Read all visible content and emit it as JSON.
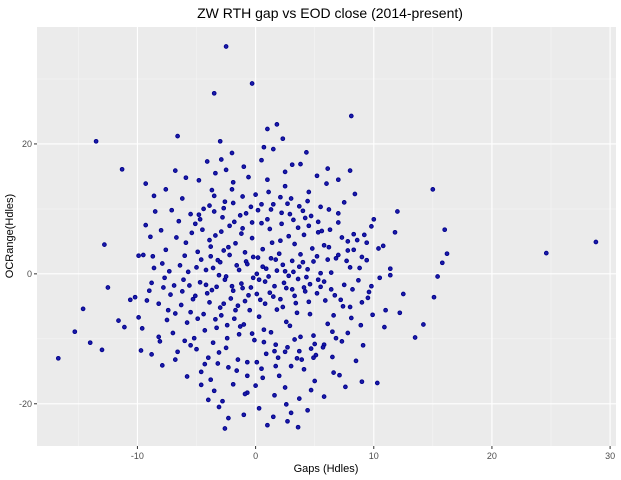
{
  "chart_data": {
    "type": "scatter",
    "title": "ZW RTH gap vs EOD close (2014-present)",
    "xlabel": "Gaps (Hdles)",
    "ylabel": "OCRange(Hdles)",
    "xlim": [
      -18.5,
      30.5
    ],
    "ylim": [
      -26.5,
      38
    ],
    "x_ticks": [
      -10,
      0,
      10,
      20,
      30
    ],
    "y_ticks": [
      -20,
      0,
      20
    ],
    "grid": true,
    "legend": "none",
    "colors": {
      "panel": "#ebebeb",
      "grid_major": "#ffffff",
      "grid_minor": "#f5f5f5",
      "point_fill": "#1a1aa8",
      "point_stroke": "#00008b"
    },
    "points": [
      [
        -16.7,
        -13.0
      ],
      [
        -14.6,
        -5.4
      ],
      [
        -14.0,
        -10.6
      ],
      [
        -13.5,
        20.4
      ],
      [
        -12.8,
        4.5
      ],
      [
        -11.3,
        16.1
      ],
      [
        -11.1,
        -8.2
      ],
      [
        -10.2,
        -3.6
      ],
      [
        -9.9,
        -6.7
      ],
      [
        -9.7,
        -11.8
      ],
      [
        -9.5,
        2.9
      ],
      [
        -9.3,
        7.5
      ],
      [
        -9.0,
        -2.6
      ],
      [
        -8.8,
        -1.4
      ],
      [
        -8.7,
        2.7
      ],
      [
        -8.5,
        9.6
      ],
      [
        -8.2,
        -9.7
      ],
      [
        -8.0,
        6.7
      ],
      [
        -7.8,
        -2.1
      ],
      [
        -7.6,
        3.7
      ],
      [
        -7.4,
        -5.6
      ],
      [
        -7.3,
        0.4
      ],
      [
        -7.0,
        -9.1
      ],
      [
        -6.9,
        -1.8
      ],
      [
        -6.7,
        5.6
      ],
      [
        -6.6,
        -12.0
      ],
      [
        -6.5,
        8.1
      ],
      [
        -6.3,
        -4.8
      ],
      [
        -6.0,
        2.8
      ],
      [
        -5.8,
        -7.5
      ],
      [
        -5.6,
        -1.8
      ],
      [
        -5.4,
        6.3
      ],
      [
        -5.2,
        -9.9
      ],
      [
        -5.1,
        -3.4
      ],
      [
        -4.9,
        3.4
      ],
      [
        -4.8,
        9.1
      ],
      [
        -4.6,
        -15.1
      ],
      [
        -4.4,
        -6.2
      ],
      [
        -4.2,
        0.6
      ],
      [
        -4.0,
        -12.9
      ],
      [
        -3.9,
        5.2
      ],
      [
        -3.7,
        -2.5
      ],
      [
        -3.5,
        12.0
      ],
      [
        -3.3,
        -8.3
      ],
      [
        -3.2,
        2.1
      ],
      [
        -3.0,
        -5.2
      ],
      [
        -2.8,
        8.7
      ],
      [
        -2.6,
        -0.9
      ],
      [
        -2.5,
        -11.4
      ],
      [
        -2.3,
        4.1
      ],
      [
        -2.1,
        -3.8
      ],
      [
        -1.9,
        14.1
      ],
      [
        -1.8,
        -6.9
      ],
      [
        -1.6,
        1.3
      ],
      [
        -1.4,
        -9.3
      ],
      [
        -1.2,
        6.2
      ],
      [
        -1.1,
        -2.2
      ],
      [
        -0.9,
        3.3
      ],
      [
        -0.7,
        -13.6
      ],
      [
        -0.5,
        -5.6
      ],
      [
        -0.4,
        10.3
      ],
      [
        -0.2,
        -0.6
      ],
      [
        0.0,
        -17.2
      ],
      [
        0.2,
        2.5
      ],
      [
        0.4,
        -4.0
      ],
      [
        0.5,
        7.8
      ],
      [
        0.7,
        -8.6
      ],
      [
        0.9,
        0.8
      ],
      [
        1.1,
        12.6
      ],
      [
        1.2,
        -2.9
      ],
      [
        1.4,
        4.8
      ],
      [
        1.6,
        -11.9
      ],
      [
        1.8,
        -5.5
      ],
      [
        2.0,
        3.1
      ],
      [
        2.2,
        9.4
      ],
      [
        2.4,
        -1.4
      ],
      [
        2.6,
        -7.4
      ],
      [
        2.8,
        5.8
      ],
      [
        3.0,
        -14.2
      ],
      [
        3.2,
        0.3
      ],
      [
        3.4,
        -4.5
      ],
      [
        3.6,
        7.1
      ],
      [
        3.8,
        -9.7
      ],
      [
        4.0,
        1.8
      ],
      [
        4.2,
        -2.7
      ],
      [
        4.4,
        11.2
      ],
      [
        4.6,
        -6.2
      ],
      [
        4.8,
        3.9
      ],
      [
        5.1,
        -12.5
      ],
      [
        5.3,
        -0.9
      ],
      [
        5.6,
        6.6
      ],
      [
        5.9,
        -4.1
      ],
      [
        6.2,
        9.9
      ],
      [
        6.5,
        -8.9
      ],
      [
        6.8,
        2.4
      ],
      [
        7.1,
        -15.6
      ],
      [
        7.5,
        -1.7
      ],
      [
        7.8,
        5.0
      ],
      [
        8.1,
        -6.8
      ],
      [
        8.4,
        12.3
      ],
      [
        8.8,
        0.9
      ],
      [
        9.1,
        -11.0
      ],
      [
        9.5,
        -3.7
      ],
      [
        9.8,
        7.3
      ],
      [
        10.3,
        -16.8
      ],
      [
        10.8,
        4.3
      ],
      [
        11.4,
        -0.2
      ],
      [
        12.2,
        -6.0
      ],
      [
        13.5,
        -9.8
      ],
      [
        15.1,
        -3.6
      ],
      [
        15.4,
        -0.4
      ],
      [
        15.8,
        1.7
      ],
      [
        16.2,
        3.1
      ],
      [
        -3.5,
        27.8
      ],
      [
        -2.5,
        35.0
      ],
      [
        -0.3,
        29.3
      ],
      [
        1.0,
        22.3
      ],
      [
        1.8,
        23.0
      ],
      [
        8.1,
        24.3
      ],
      [
        24.6,
        3.2
      ],
      [
        28.8,
        4.9
      ],
      [
        -2.6,
        -23.8
      ],
      [
        1.0,
        -23.3
      ],
      [
        2.7,
        -22.7
      ],
      [
        3.6,
        -23.6
      ],
      [
        4.4,
        -21.0
      ],
      [
        -4.1,
        17.3
      ],
      [
        -2.5,
        16.0
      ],
      [
        3.1,
        16.8
      ],
      [
        4.3,
        18.7
      ],
      [
        -6.6,
        21.2
      ],
      [
        -3.0,
        20.4
      ],
      [
        15.0,
        13.0
      ],
      [
        16.0,
        6.8
      ],
      [
        14.2,
        -7.8
      ],
      [
        9.0,
        -16.6
      ],
      [
        -0.7,
        -18.3
      ],
      [
        5.0,
        -16.5
      ],
      [
        -3.5,
        -18.0
      ],
      [
        2.5,
        -17.5
      ],
      [
        -8.2,
        -4.6
      ],
      [
        -7.9,
        1.6
      ],
      [
        -7.5,
        -7.1
      ],
      [
        -6.1,
        -0.9
      ],
      [
        -5.9,
        4.8
      ],
      [
        -5.5,
        -5.9
      ],
      [
        -5.0,
        1.0
      ],
      [
        -4.7,
        -1.3
      ],
      [
        -4.5,
        6.8
      ],
      [
        -4.3,
        -8.7
      ],
      [
        -4.1,
        -3.0
      ],
      [
        -3.8,
        2.7
      ],
      [
        -3.6,
        -10.6
      ],
      [
        -3.4,
        5.9
      ],
      [
        -3.1,
        -0.2
      ],
      [
        -2.9,
        -6.4
      ],
      [
        -2.7,
        3.6
      ],
      [
        -2.4,
        -9.9
      ],
      [
        -2.2,
        7.4
      ],
      [
        -2.0,
        -1.9
      ],
      [
        -1.7,
        4.7
      ],
      [
        -1.5,
        -4.9
      ],
      [
        -1.3,
        9.0
      ],
      [
        -1.0,
        -7.8
      ],
      [
        -0.8,
        1.9
      ],
      [
        -0.6,
        -3.3
      ],
      [
        -0.3,
        5.5
      ],
      [
        -0.1,
        -10.2
      ],
      [
        0.1,
        0.0
      ],
      [
        0.3,
        -6.6
      ],
      [
        0.6,
        3.8
      ],
      [
        0.8,
        -1.2
      ],
      [
        1.0,
        8.4
      ],
      [
        1.3,
        -9.0
      ],
      [
        1.5,
        -3.5
      ],
      [
        1.7,
        2.2
      ],
      [
        1.9,
        -12.9
      ],
      [
        2.1,
        5.1
      ],
      [
        2.3,
        -5.1
      ],
      [
        2.5,
        0.4
      ],
      [
        2.7,
        10.8
      ],
      [
        2.9,
        -8.0
      ],
      [
        3.1,
        -2.4
      ],
      [
        3.3,
        4.6
      ],
      [
        3.5,
        -6.0
      ],
      [
        3.7,
        1.1
      ],
      [
        3.9,
        -13.2
      ],
      [
        4.1,
        6.0
      ],
      [
        4.3,
        -0.5
      ],
      [
        4.5,
        -4.3
      ],
      [
        4.7,
        8.9
      ],
      [
        4.9,
        -9.5
      ],
      [
        5.2,
        2.7
      ],
      [
        5.5,
        -2.0
      ],
      [
        5.8,
        4.4
      ],
      [
        6.1,
        -7.7
      ],
      [
        6.4,
        0.2
      ],
      [
        6.7,
        -3.3
      ],
      [
        7.0,
        7.9
      ],
      [
        7.3,
        -10.4
      ],
      [
        7.7,
        2.0
      ],
      [
        8.0,
        -5.1
      ],
      [
        8.3,
        3.7
      ],
      [
        8.7,
        -1.0
      ],
      [
        9.2,
        6.0
      ],
      [
        9.6,
        -2.8
      ],
      [
        10.5,
        -0.6
      ],
      [
        11.0,
        -5.6
      ],
      [
        -9.2,
        -4.1
      ],
      [
        -8.6,
        0.9
      ],
      [
        -7.7,
        -0.6
      ],
      [
        -7.2,
        -3.2
      ],
      [
        -6.8,
        -6.1
      ],
      [
        -6.4,
        1.3
      ],
      [
        -6.2,
        -2.7
      ],
      [
        -5.7,
        0.3
      ],
      [
        -5.3,
        -3.9
      ],
      [
        -4.9,
        -6.9
      ],
      [
        -4.6,
        2.2
      ],
      [
        -4.2,
        -1.7
      ],
      [
        -3.9,
        -4.4
      ],
      [
        -3.6,
        0.9
      ],
      [
        -3.3,
        -2.0
      ],
      [
        -3.0,
        1.8
      ],
      [
        -2.7,
        -4.6
      ],
      [
        -2.5,
        -0.4
      ],
      [
        -2.2,
        2.9
      ],
      [
        -1.9,
        -2.6
      ],
      [
        -1.7,
        -5.6
      ],
      [
        -1.4,
        0.6
      ],
      [
        -1.2,
        -1.5
      ],
      [
        -0.9,
        -4.2
      ],
      [
        -0.7,
        1.5
      ],
      [
        -0.4,
        -2.1
      ],
      [
        -0.2,
        2.6
      ],
      [
        0.1,
        -3.1
      ],
      [
        0.3,
        -0.9
      ],
      [
        0.6,
        1.1
      ],
      [
        0.8,
        -4.6
      ],
      [
        1.1,
        -0.4
      ],
      [
        1.3,
        2.4
      ],
      [
        1.6,
        -1.9
      ],
      [
        1.8,
        0.5
      ],
      [
        2.1,
        -3.9
      ],
      [
        2.3,
        1.4
      ],
      [
        2.6,
        -2.2
      ],
      [
        2.8,
        -0.3
      ],
      [
        3.1,
        2.0
      ],
      [
        3.3,
        -3.4
      ],
      [
        3.6,
        -0.8
      ],
      [
        3.8,
        3.0
      ],
      [
        4.1,
        -2.1
      ],
      [
        4.4,
        0.7
      ],
      [
        4.6,
        -1.6
      ],
      [
        4.9,
        1.9
      ],
      [
        5.2,
        -3.0
      ],
      [
        5.5,
        0.1
      ],
      [
        5.8,
        -1.2
      ],
      [
        6.1,
        2.2
      ],
      [
        6.4,
        -2.4
      ],
      [
        -9.9,
        2.8
      ],
      [
        -8.9,
        5.7
      ],
      [
        -8.1,
        -10.4
      ],
      [
        -7.1,
        9.8
      ],
      [
        -6.2,
        11.6
      ],
      [
        -5.5,
        9.2
      ],
      [
        -5.0,
        -11.6
      ],
      [
        -4.4,
        10.0
      ],
      [
        -3.7,
        12.9
      ],
      [
        -3.2,
        -13.8
      ],
      [
        -2.6,
        11.1
      ],
      [
        -2.0,
        13.0
      ],
      [
        -1.6,
        -14.9
      ],
      [
        -1.1,
        11.9
      ],
      [
        -0.6,
        14.9
      ],
      [
        0.0,
        12.2
      ],
      [
        0.5,
        -14.6
      ],
      [
        1.0,
        14.5
      ],
      [
        1.5,
        10.7
      ],
      [
        2.0,
        -15.7
      ],
      [
        2.5,
        13.5
      ],
      [
        3.0,
        11.6
      ],
      [
        3.5,
        -13.0
      ],
      [
        4.0,
        9.7
      ],
      [
        4.5,
        12.6
      ],
      [
        5.0,
        -10.8
      ],
      [
        5.5,
        10.3
      ],
      [
        6.0,
        13.9
      ],
      [
        6.5,
        -12.8
      ],
      [
        7.0,
        9.3
      ],
      [
        7.5,
        11.0
      ],
      [
        8.5,
        -13.4
      ],
      [
        10.0,
        8.4
      ],
      [
        11.8,
        6.4
      ],
      [
        12.0,
        9.6
      ],
      [
        12.5,
        -3.1
      ],
      [
        11.4,
        0.8
      ],
      [
        9.0,
        2.6
      ],
      [
        8.0,
        1.0
      ],
      [
        7.2,
        -4.0
      ],
      [
        -10.6,
        -4.0
      ],
      [
        -11.6,
        -7.2
      ],
      [
        -12.5,
        -2.1
      ],
      [
        -13.0,
        -11.7
      ],
      [
        -15.3,
        -8.9
      ],
      [
        -9.6,
        -8.4
      ],
      [
        -8.8,
        -12.4
      ],
      [
        -7.9,
        -14.1
      ],
      [
        -6.8,
        -13.2
      ],
      [
        -5.8,
        -15.8
      ],
      [
        -4.6,
        -17.1
      ],
      [
        -3.8,
        -16.3
      ],
      [
        -2.8,
        -19.6
      ],
      [
        -1.9,
        -17.0
      ],
      [
        -0.9,
        -18.5
      ],
      [
        0.6,
        -16.0
      ],
      [
        1.6,
        -18.7
      ],
      [
        2.6,
        -20.1
      ],
      [
        3.7,
        -19.2
      ],
      [
        4.7,
        -17.9
      ],
      [
        5.8,
        -18.9
      ],
      [
        6.6,
        -15.2
      ],
      [
        7.6,
        -17.4
      ],
      [
        -2.3,
        -22.2
      ],
      [
        -1.0,
        -21.7
      ],
      [
        0.3,
        -20.7
      ],
      [
        1.5,
        -22.0
      ],
      [
        3.0,
        -21.4
      ],
      [
        -3.1,
        -20.5
      ],
      [
        -4.0,
        -19.4
      ],
      [
        -2.0,
        18.6
      ],
      [
        -1.0,
        16.5
      ],
      [
        0.5,
        17.5
      ],
      [
        1.5,
        19.2
      ],
      [
        2.5,
        15.7
      ],
      [
        3.8,
        16.9
      ],
      [
        -3.4,
        15.5
      ],
      [
        -4.8,
        14.4
      ],
      [
        -5.9,
        14.8
      ],
      [
        -6.8,
        15.9
      ],
      [
        5.2,
        15.1
      ],
      [
        6.1,
        16.2
      ],
      [
        7.0,
        14.5
      ],
      [
        8.0,
        15.9
      ],
      [
        -7.6,
        13.0
      ],
      [
        -8.6,
        12.0
      ],
      [
        -9.3,
        13.9
      ],
      [
        -2.9,
        17.6
      ],
      [
        0.7,
        19.5
      ],
      [
        2.3,
        20.8
      ],
      [
        -3.8,
        4.2
      ],
      [
        -3.4,
        -7.0
      ],
      [
        -2.9,
        6.5
      ],
      [
        -2.4,
        -7.9
      ],
      [
        -1.8,
        8.0
      ],
      [
        -1.3,
        -8.1
      ],
      [
        -0.8,
        9.3
      ],
      [
        -0.3,
        -9.2
      ],
      [
        0.2,
        9.8
      ],
      [
        0.7,
        -10.5
      ],
      [
        1.2,
        6.9
      ],
      [
        1.7,
        -10.9
      ],
      [
        2.2,
        7.7
      ],
      [
        2.7,
        -11.3
      ],
      [
        3.2,
        8.3
      ],
      [
        3.7,
        -11.9
      ],
      [
        4.2,
        8.6
      ],
      [
        4.7,
        -11.5
      ],
      [
        5.3,
        8.0
      ],
      [
        5.8,
        -10.9
      ],
      [
        6.3,
        6.8
      ],
      [
        6.8,
        -9.9
      ],
      [
        7.3,
        5.6
      ],
      [
        7.8,
        -9.1
      ],
      [
        8.3,
        6.1
      ],
      [
        8.9,
        -7.9
      ],
      [
        9.4,
        4.8
      ],
      [
        9.9,
        -6.3
      ],
      [
        10.4,
        3.9
      ],
      [
        10.9,
        -8.2
      ],
      [
        -6.0,
        -10.3
      ],
      [
        -5.5,
        -11.0
      ],
      [
        -5.1,
        7.7
      ],
      [
        -4.7,
        8.4
      ],
      [
        -4.3,
        -13.9
      ],
      [
        -3.9,
        10.5
      ],
      [
        -3.5,
        9.6
      ],
      [
        -3.1,
        -12.1
      ],
      [
        -2.7,
        10.1
      ],
      [
        -2.3,
        -14.4
      ],
      [
        -1.9,
        10.9
      ],
      [
        -1.5,
        -13.2
      ],
      [
        -1.1,
        7.0
      ],
      [
        -0.7,
        -15.7
      ],
      [
        -0.3,
        7.9
      ],
      [
        0.1,
        -13.6
      ],
      [
        0.5,
        10.7
      ],
      [
        0.9,
        -12.3
      ],
      [
        1.3,
        9.9
      ],
      [
        1.7,
        -14.2
      ],
      [
        2.1,
        11.8
      ],
      [
        2.5,
        -12.0
      ],
      [
        2.9,
        9.2
      ],
      [
        3.3,
        -10.1
      ],
      [
        3.7,
        10.4
      ],
      [
        4.1,
        -14.7
      ],
      [
        4.5,
        7.4
      ],
      [
        4.9,
        -12.9
      ],
      [
        5.3,
        6.4
      ],
      [
        5.7,
        -11.3
      ],
      [
        6.2,
        4.1
      ],
      [
        6.6,
        -6.4
      ],
      [
        7.0,
        2.9
      ],
      [
        7.4,
        -5.0
      ],
      [
        7.8,
        3.6
      ],
      [
        8.2,
        -2.4
      ],
      [
        8.6,
        5.2
      ],
      [
        9.0,
        -4.4
      ],
      [
        9.4,
        2.1
      ],
      [
        9.8,
        -1.9
      ]
    ]
  }
}
